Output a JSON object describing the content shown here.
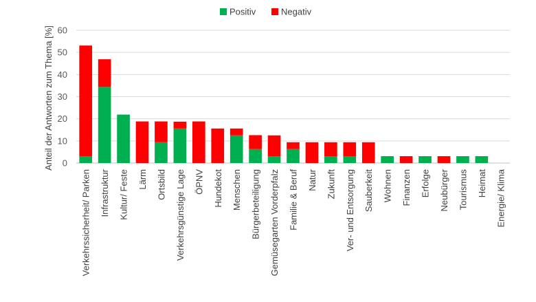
{
  "chart_data": {
    "type": "bar",
    "stacked": true,
    "title": "",
    "xlabel": "",
    "ylabel": "Anteil der Antworten zum Thema [%]",
    "ylim": [
      0,
      60
    ],
    "yticks": [
      0,
      10,
      20,
      30,
      40,
      50,
      60
    ],
    "grid": true,
    "legend_position": "top",
    "categories": [
      "Verkehrssicherheit/ Parken",
      "Infrastruktur",
      "Kultur/ Feste",
      "Lärm",
      "Ortsbild",
      "Verkehrsgünstige Lage",
      "ÖPNV",
      "Hundekot",
      "Menschen",
      "Bürgerbeteiligung",
      "Gemüsegarten Vorderpfalz",
      "Familie & Beruf",
      "Natur",
      "Zukunft",
      "Ver- und Entsorgung",
      "Sauberkeit",
      "Wohnen",
      "Finanzen",
      "Erfolge",
      "Neubürger",
      "Tourismus",
      "Heimat",
      "Energie/ Klima"
    ],
    "series": [
      {
        "name": "Positiv",
        "color": "#00b050",
        "values": [
          3.1,
          34.4,
          21.9,
          0,
          9.4,
          15.6,
          0,
          0,
          12.5,
          6.3,
          3.1,
          6.3,
          0,
          3.1,
          3.1,
          0,
          3.1,
          0,
          3.1,
          0,
          3.1,
          3.1,
          0
        ]
      },
      {
        "name": "Negativ",
        "color": "#ff0000",
        "values": [
          50.0,
          12.5,
          0,
          18.8,
          9.4,
          3.1,
          18.8,
          15.6,
          3.1,
          6.3,
          9.4,
          3.1,
          9.4,
          6.3,
          6.3,
          9.4,
          0,
          3.1,
          0,
          3.1,
          0,
          0,
          0
        ]
      }
    ]
  }
}
